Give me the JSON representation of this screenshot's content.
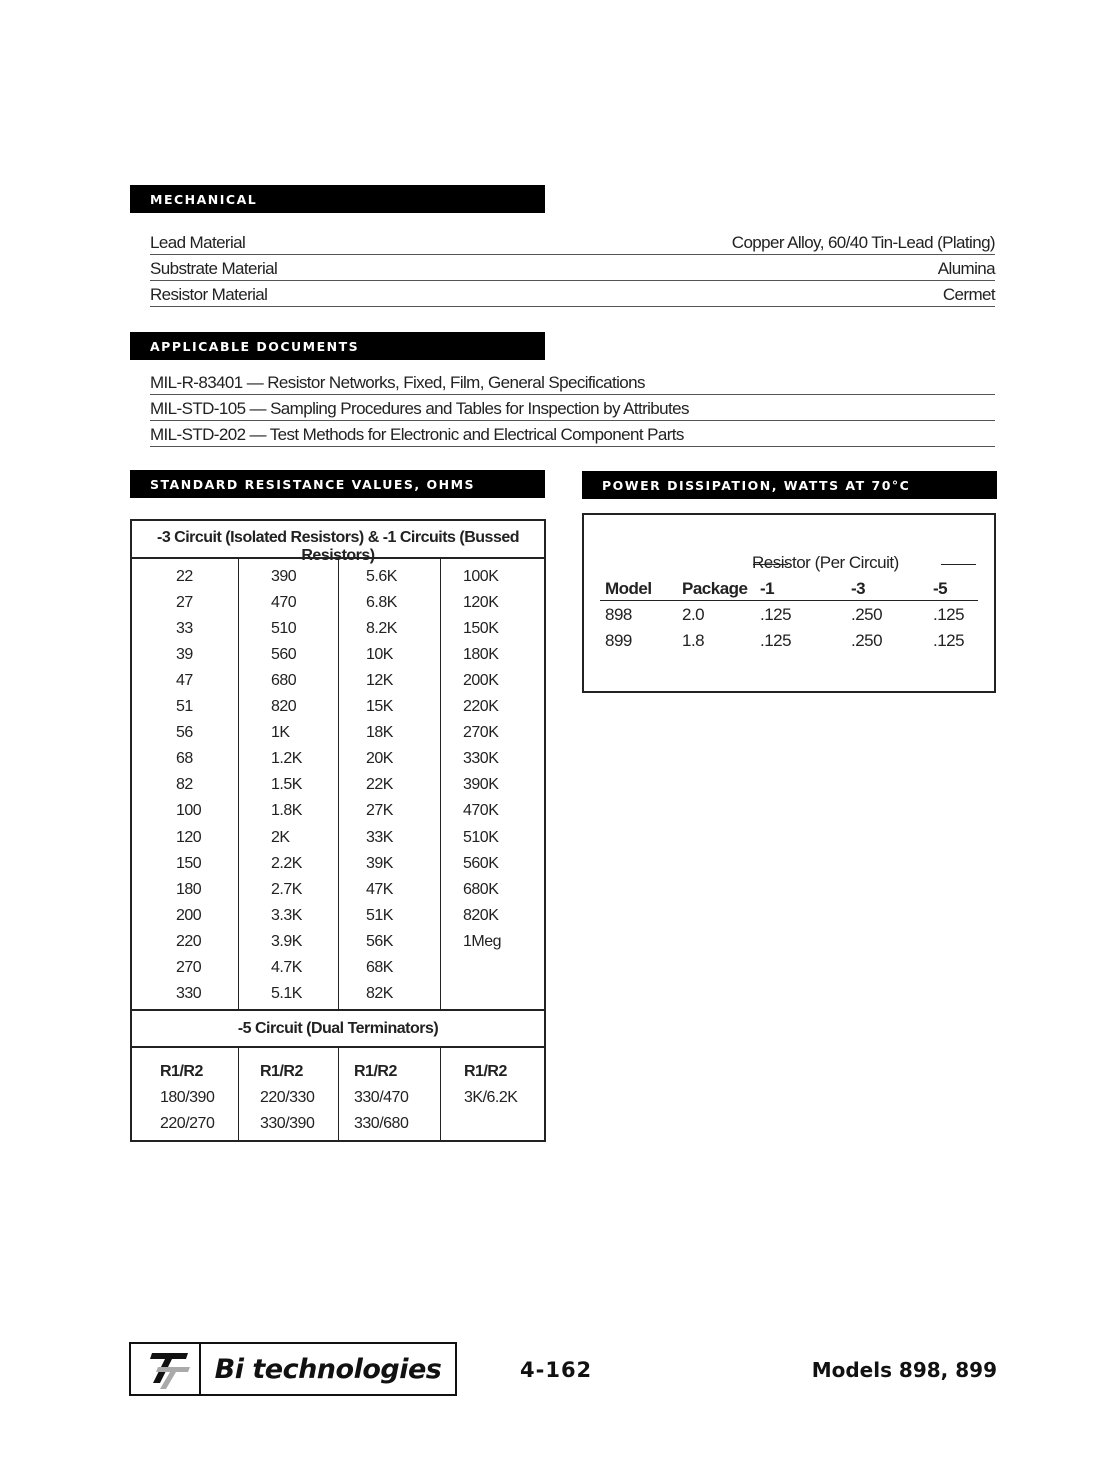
{
  "mechanical": {
    "title": "MECHANICAL",
    "rows": [
      {
        "label": "Lead Material",
        "value": "Copper Alloy, 60/40 Tin-Lead (Plating)"
      },
      {
        "label": "Substrate Material",
        "value": "Alumina"
      },
      {
        "label": "Resistor Material",
        "value": "Cermet"
      }
    ]
  },
  "documents": {
    "title": "APPLICABLE DOCUMENTS",
    "items": [
      "MIL-R-83401 — Resistor Networks, Fixed, Film, General Specifications",
      "MIL-STD-105 — Sampling Procedures and Tables for Inspection by Attributes",
      "MIL-STD-202 — Test Methods for Electronic and Electrical Component Parts"
    ]
  },
  "resistance": {
    "title": "STANDARD RESISTANCE VALUES, OHMS",
    "header": "-3 Circuit (Isolated Resistors) & -1 Circuits (Bussed Resistors)",
    "columns": [
      [
        "22",
        "27",
        "33",
        "39",
        "47",
        "51",
        "56",
        "68",
        "82",
        "100",
        "120",
        "150",
        "180",
        "200",
        "220",
        "270",
        "330"
      ],
      [
        "390",
        "470",
        "510",
        "560",
        "680",
        "820",
        "1K",
        "1.2K",
        "1.5K",
        "1.8K",
        "2K",
        "2.2K",
        "2.7K",
        "3.3K",
        "3.9K",
        "4.7K",
        "5.1K"
      ],
      [
        "5.6K",
        "6.8K",
        "8.2K",
        "10K",
        "12K",
        "15K",
        "18K",
        "20K",
        "22K",
        "27K",
        "33K",
        "39K",
        "47K",
        "51K",
        "56K",
        "68K",
        "82K"
      ],
      [
        "100K",
        "120K",
        "150K",
        "180K",
        "200K",
        "220K",
        "270K",
        "330K",
        "390K",
        "470K",
        "510K",
        "560K",
        "680K",
        "820K",
        "1Meg"
      ]
    ],
    "dual_header": "-5 Circuit (Dual Terminators)",
    "dual_columns": [
      [
        "R1/R2",
        "180/390",
        "220/270"
      ],
      [
        "R1/R2",
        "220/330",
        "330/390"
      ],
      [
        "R1/R2",
        "330/470",
        "330/680"
      ],
      [
        "R1/R2",
        "3K/6.2K"
      ]
    ]
  },
  "power": {
    "title": "POWER DISSIPATION, WATTS AT 70°C",
    "group_header": "Resistor (Per Circuit)",
    "headers": [
      "Model",
      "Package",
      "-1",
      "-3",
      "-5"
    ],
    "rows": [
      [
        "898",
        "2.0",
        ".125",
        ".250",
        ".125"
      ],
      [
        "899",
        "1.8",
        ".125",
        ".250",
        ".125"
      ]
    ]
  },
  "footer": {
    "logo_text": "Bi technologies",
    "page_number": "4-162",
    "models": "Models 898, 899"
  }
}
